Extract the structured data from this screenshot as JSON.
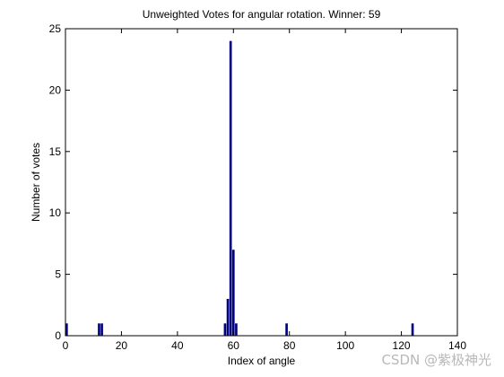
{
  "chart_data": {
    "type": "bar",
    "title": "Unweighted Votes for angular rotation. Winner: 59",
    "xlabel": "Index of angle",
    "ylabel": "Number of votes",
    "xlim": [
      0,
      140
    ],
    "ylim": [
      0,
      25
    ],
    "xticks": [
      0,
      20,
      40,
      60,
      80,
      100,
      120,
      140
    ],
    "yticks": [
      0,
      5,
      10,
      15,
      20,
      25
    ],
    "bar_color": "#00007f",
    "grid": false,
    "x": [
      0,
      12,
      13,
      57,
      58,
      59,
      60,
      61,
      79,
      124
    ],
    "values": [
      1,
      1,
      1,
      1,
      3,
      24,
      7,
      1,
      1,
      1
    ]
  },
  "watermark": "CSDN @紫极神光"
}
